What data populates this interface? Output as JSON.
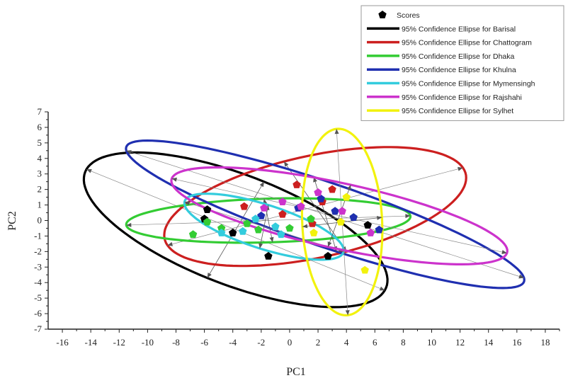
{
  "chart_data": {
    "type": "scatter",
    "xlabel": "PC1",
    "ylabel": "PC2",
    "xlim": [
      -17,
      19
    ],
    "ylim": [
      -7,
      7
    ],
    "xticks": [
      -16,
      -14,
      -12,
      -10,
      -8,
      -6,
      -4,
      -2,
      0,
      2,
      4,
      6,
      8,
      10,
      12,
      14,
      16,
      18
    ],
    "yticks": [
      -7,
      -6,
      -5,
      -4,
      -3,
      -2,
      -1,
      0,
      1,
      2,
      3,
      4,
      5,
      6,
      7
    ],
    "grid": false,
    "legend_position": "top-right",
    "scores_label": "Scores",
    "series": [
      {
        "name": "95% Confidence Ellipse for Barisal",
        "color": "#000000",
        "center": [
          -3.8,
          -0.6
        ],
        "axis_end_1": [
          -14.3,
          3.3
        ],
        "axis_end_2": [
          -1.8,
          2.5
        ],
        "points": [
          [
            -5.8,
            0.7
          ],
          [
            -4.0,
            -0.8
          ],
          [
            -1.5,
            -2.3
          ],
          [
            2.7,
            -2.3
          ],
          [
            5.5,
            -0.3
          ],
          [
            -6.0,
            0.1
          ]
        ]
      },
      {
        "name": "95% Confidence Ellipse for Chattogram",
        "color": "#cc1f1f",
        "center": [
          1.8,
          0.9
        ],
        "axis_end_1": [
          -8.6,
          -1.6
        ],
        "axis_end_2": [
          -0.4,
          3.8
        ],
        "points": [
          [
            0.5,
            2.3
          ],
          [
            3.0,
            2.0
          ],
          [
            2.3,
            1.2
          ],
          [
            -3.2,
            0.9
          ],
          [
            1.6,
            -0.2
          ],
          [
            -0.5,
            0.4
          ]
        ]
      },
      {
        "name": "95% Confidence Ellipse for Dhaka",
        "color": "#33cc33",
        "center": [
          -1.5,
          0.0
        ],
        "axis_end_1": [
          -11.5,
          -0.3
        ],
        "axis_end_2": [
          -1.2,
          -1.4
        ],
        "points": [
          [
            -6.8,
            -0.9
          ],
          [
            -5.8,
            -0.1
          ],
          [
            -4.8,
            -0.5
          ],
          [
            -2.2,
            -0.6
          ],
          [
            0.0,
            -0.5
          ],
          [
            1.5,
            0.1
          ],
          [
            4.5,
            0.2
          ],
          [
            -3.0,
            -0.2
          ]
        ]
      },
      {
        "name": "95% Confidence Ellipse for Khulna",
        "color": "#1f2fb0",
        "center": [
          2.5,
          0.4
        ],
        "axis_end_1": [
          -11.5,
          4.5
        ],
        "axis_end_2": [
          1.7,
          2.8
        ],
        "points": [
          [
            0.6,
            0.8
          ],
          [
            4.5,
            0.2
          ],
          [
            6.3,
            -0.6
          ],
          [
            -2.0,
            0.3
          ],
          [
            2.2,
            1.4
          ],
          [
            3.2,
            0.6
          ]
        ]
      },
      {
        "name": "95% Confidence Ellipse for Mymensingh",
        "color": "#33ccdd",
        "center": [
          -1.8,
          -0.4
        ],
        "axis_end_1": [
          -7.4,
          1.2
        ],
        "axis_end_2": [
          -1.5,
          1.0
        ],
        "points": [
          [
            -3.3,
            -0.7
          ],
          [
            -1.0,
            -0.4
          ],
          [
            -2.4,
            0.1
          ],
          [
            -4.8,
            -0.8
          ],
          [
            -0.6,
            -0.9
          ]
        ]
      },
      {
        "name": "95% Confidence Ellipse for Rajshahi",
        "color": "#cc33cc",
        "center": [
          3.5,
          0.3
        ],
        "axis_end_1": [
          -8.3,
          2.7
        ],
        "axis_end_2": [
          4.3,
          2.3
        ],
        "points": [
          [
            -1.8,
            0.8
          ],
          [
            0.8,
            0.9
          ],
          [
            3.7,
            0.6
          ],
          [
            5.7,
            -0.8
          ],
          [
            2.0,
            1.8
          ],
          [
            -0.5,
            1.2
          ]
        ]
      },
      {
        "name": "95% Confidence Ellipse for Sylhet",
        "color": "#f2f20d",
        "center": [
          3.7,
          -0.1
        ],
        "axis_end_1": [
          3.3,
          5.9
        ],
        "axis_end_2": [
          6.5,
          0.2
        ],
        "points": [
          [
            4.0,
            1.5
          ],
          [
            5.3,
            -3.2
          ],
          [
            1.7,
            -0.8
          ],
          [
            3.6,
            -0.1
          ]
        ]
      }
    ]
  }
}
